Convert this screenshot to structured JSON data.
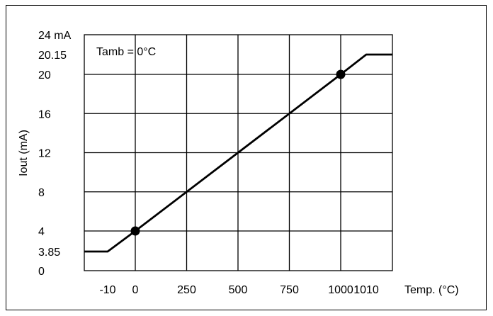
{
  "chart_data": {
    "type": "line",
    "ylabel": "Iout (mA)",
    "xlabel": "Temp. (°C)",
    "annotation": "Tamb = 0°C",
    "y_ticks": [
      {
        "value": 0,
        "label": "0"
      },
      {
        "value": 3.85,
        "label": "3.85"
      },
      {
        "value": 4,
        "label": "4"
      },
      {
        "value": 8,
        "label": "8"
      },
      {
        "value": 12,
        "label": "12"
      },
      {
        "value": 16,
        "label": "16"
      },
      {
        "value": 20,
        "label": "20"
      },
      {
        "value": 20.15,
        "label": "20.15"
      },
      {
        "value": 24,
        "label": "24 mA"
      }
    ],
    "x_ticks": [
      {
        "value": -10,
        "label": "-10"
      },
      {
        "value": 0,
        "label": "0"
      },
      {
        "value": 250,
        "label": "250"
      },
      {
        "value": 500,
        "label": "500"
      },
      {
        "value": 750,
        "label": "750"
      },
      {
        "value": 1000,
        "label": "1000"
      },
      {
        "value": 1010,
        "label": "1010"
      }
    ],
    "x_grid": [
      0,
      250,
      500,
      750,
      1000
    ],
    "y_grid": [
      4,
      8,
      12,
      16,
      20
    ],
    "grid": true,
    "series": [
      {
        "points": [
          {
            "x": -60,
            "y": 3.85
          },
          {
            "x": -10,
            "y": 3.85
          },
          {
            "x": 0,
            "y": 4
          },
          {
            "x": 1000,
            "y": 20
          },
          {
            "x": 1010,
            "y": 20.15
          },
          {
            "x": 1060,
            "y": 20.15
          }
        ]
      }
    ],
    "markers": [
      {
        "x": 0,
        "y": 4
      },
      {
        "x": 1000,
        "y": 20
      }
    ],
    "xlim": [
      -60,
      1060
    ],
    "ylim": [
      0,
      24
    ]
  }
}
